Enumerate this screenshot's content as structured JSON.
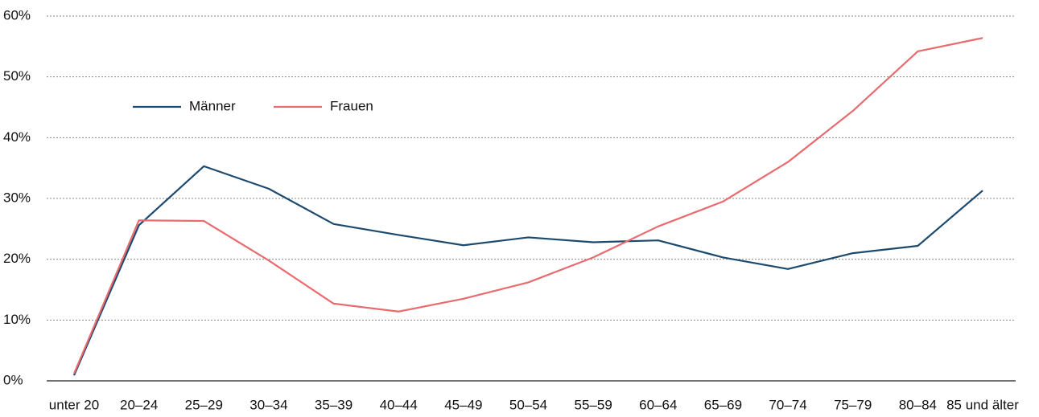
{
  "chart_data": {
    "type": "line",
    "categories": [
      "unter 20",
      "20–24",
      "25–29",
      "30–34",
      "35–39",
      "40–44",
      "45–49",
      "50–54",
      "55–59",
      "60–64",
      "65–69",
      "70–74",
      "75–79",
      "80–84",
      "85 und älter"
    ],
    "series": [
      {
        "name": "Männer",
        "color": "#1c4a6e",
        "values": [
          0.9,
          25.6,
          35.3,
          31.6,
          25.8,
          24.0,
          22.3,
          23.6,
          22.8,
          23.1,
          20.3,
          18.4,
          21.0,
          22.2,
          31.3
        ]
      },
      {
        "name": "Frauen",
        "color": "#e86b6f",
        "values": [
          1.2,
          26.4,
          26.3,
          19.8,
          12.7,
          11.4,
          13.5,
          16.2,
          20.3,
          25.4,
          29.5,
          36.0,
          44.4,
          54.2,
          56.4
        ]
      }
    ],
    "ylim": [
      0,
      60
    ],
    "yticks": [
      {
        "value": 0,
        "label": "0%"
      },
      {
        "value": 10,
        "label": "10%"
      },
      {
        "value": 20,
        "label": "20%"
      },
      {
        "value": 30,
        "label": "30%"
      },
      {
        "value": 40,
        "label": "40%"
      },
      {
        "value": 50,
        "label": "50%"
      },
      {
        "value": 60,
        "label": "60%"
      }
    ],
    "grid": true,
    "legend": "top-left"
  }
}
